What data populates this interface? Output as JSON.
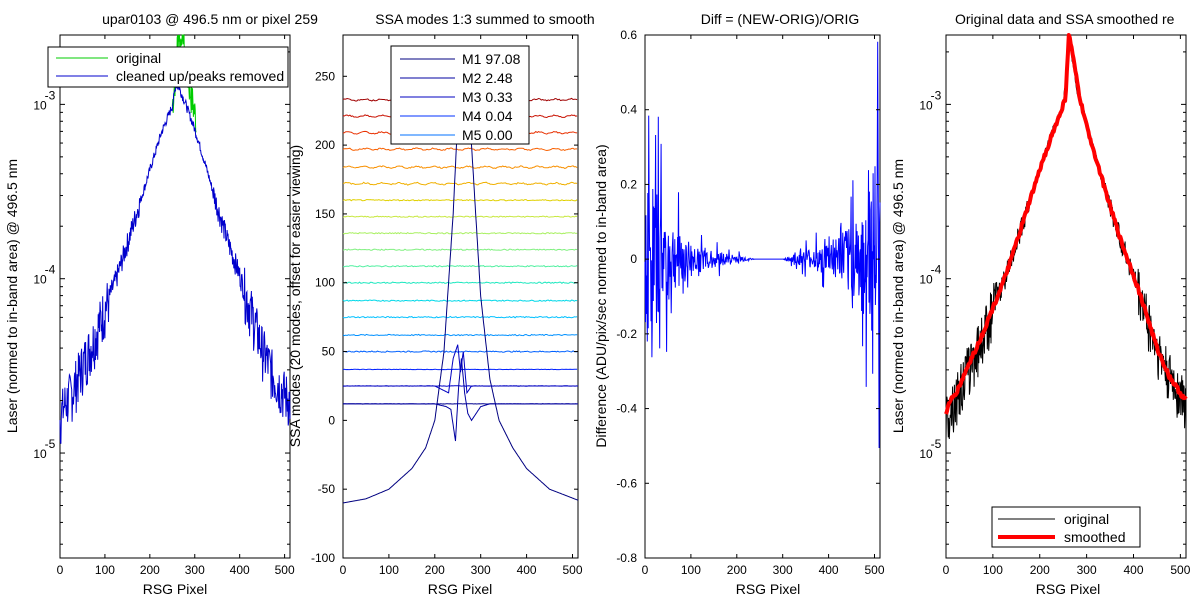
{
  "chart_data": [
    {
      "type": "line",
      "title": "upar0103 @ 496.5 nm or pixel 259",
      "xlabel": "RSG Pixel",
      "ylabel": "Laser (normed to in-band area) @ 496.5 nm",
      "xlim": [
        0,
        512
      ],
      "ylim": [
        2.5e-06,
        0.0025
      ],
      "yscale": "log",
      "xticks": [
        "0",
        "100",
        "200",
        "300",
        "400",
        "500"
      ],
      "yticks": [
        {
          "base": "10",
          "exp": "-3"
        },
        {
          "base": "10",
          "exp": "-4"
        },
        {
          "base": "10",
          "exp": "-5"
        }
      ],
      "legend": {
        "position": "top",
        "entries": [
          "original",
          "cleaned up/peaks removed"
        ]
      },
      "series": [
        {
          "name": "original",
          "color": "#00cc00",
          "x": [
            250,
            258,
            264,
            268,
            272,
            276,
            282,
            290,
            298,
            303
          ],
          "y": [
            0.00098,
            0.0016,
            0.0028,
            0.0022,
            0.0031,
            0.0024,
            0.0016,
            0.0012,
            0.00095,
            0.00082
          ]
        },
        {
          "name": "cleaned up/peaks removed",
          "color": "#0000cc",
          "x": [
            0,
            10,
            25,
            50,
            75,
            100,
            125,
            150,
            175,
            200,
            225,
            250,
            258,
            265,
            280,
            300,
            325,
            350,
            375,
            400,
            425,
            450,
            475,
            500,
            512
          ],
          "y": [
            1.6e-05,
            1.9e-05,
            2.2e-05,
            3.2e-05,
            4.5e-05,
            6.8e-05,
            0.0001,
            0.00016,
            0.00026,
            0.00042,
            0.00068,
            0.00098,
            0.0013,
            0.00125,
            0.001,
            0.00072,
            0.00044,
            0.00026,
            0.00016,
            0.000105,
            6.6e-05,
            4e-05,
            2.8e-05,
            2.2e-05,
            2e-05
          ]
        }
      ]
    },
    {
      "type": "line",
      "title": "SSA modes 1:3 summed to smooth",
      "xlabel": "RSG Pixel",
      "ylabel": "SSA modes (20 modes, offset for easier viewing)",
      "xlim": [
        0,
        512
      ],
      "ylim": [
        -100,
        280
      ],
      "xticks": [
        "0",
        "100",
        "200",
        "300",
        "400",
        "500"
      ],
      "yticks": [
        "-100",
        "-50",
        "0",
        "50",
        "100",
        "150",
        "200",
        "250"
      ],
      "legend": {
        "position": "top",
        "entries": [
          "M1 97.08",
          "M2 2.48",
          "M3 0.33",
          "M4 0.04",
          "M5 0.00"
        ]
      },
      "offsets": [
        12,
        25,
        37,
        50,
        62,
        75,
        87,
        100,
        112,
        124,
        136,
        148,
        160,
        172,
        184,
        197,
        209,
        221,
        233
      ],
      "colors": [
        "#000090",
        "#0000c8",
        "#0020ff",
        "#0060ff",
        "#0090ff",
        "#00c0ff",
        "#00d8e8",
        "#20e8c0",
        "#50f0a0",
        "#80f080",
        "#a8f060",
        "#c8e840",
        "#e0d000",
        "#f0b000",
        "#f89000",
        "#f86000",
        "#e83000",
        "#c81000",
        "#a00000"
      ],
      "mode1": {
        "x": [
          0,
          50,
          100,
          150,
          180,
          200,
          220,
          240,
          250,
          256,
          260,
          266,
          280,
          300,
          320,
          340,
          370,
          400,
          450,
          512
        ],
        "y": [
          -60,
          -57,
          -50,
          -35,
          -20,
          0,
          50,
          150,
          220,
          245,
          250,
          240,
          200,
          90,
          30,
          0,
          -20,
          -35,
          -50,
          -58
        ]
      },
      "mode2": {
        "x": [
          0,
          200,
          225,
          235,
          245,
          252,
          258,
          265,
          272,
          280,
          290,
          300,
          320,
          512
        ],
        "y": [
          12,
          12,
          10,
          8,
          -15,
          25,
          45,
          20,
          5,
          0,
          5,
          10,
          12,
          12
        ]
      },
      "mode3": {
        "x": [
          0,
          200,
          230,
          240,
          250,
          256,
          262,
          270,
          280,
          300,
          512
        ],
        "y": [
          25,
          25,
          20,
          45,
          55,
          35,
          50,
          20,
          25,
          25,
          25
        ]
      }
    },
    {
      "type": "line",
      "title": "Diff = (NEW-ORIG)/ORIG",
      "xlabel": "RSG Pixel",
      "ylabel": "Difference (ADU/pix/sec normed to in-band area)",
      "xlim": [
        0,
        512
      ],
      "ylim": [
        -0.8,
        0.6
      ],
      "xticks": [
        "0",
        "100",
        "200",
        "300",
        "400",
        "500"
      ],
      "yticks": [
        "-0.8",
        "-0.6",
        "-0.4",
        "-0.2",
        "0",
        "0.2",
        "0.4",
        "0.6"
      ],
      "series": [
        {
          "color": "#0000ff",
          "envelope_x": [
            0,
            20,
            50,
            100,
            150,
            200,
            240,
            300,
            320,
            360,
            400,
            440,
            480,
            500,
            512
          ],
          "envelope_y": [
            0.45,
            0.35,
            0.2,
            0.08,
            0.04,
            0.02,
            0,
            0,
            0.02,
            0.05,
            0.08,
            0.15,
            0.3,
            0.45,
            0.5
          ],
          "flat_range": [
            240,
            300
          ]
        }
      ]
    },
    {
      "type": "line",
      "title": "Original data and SSA smoothed re",
      "xlabel": "RSG Pixel",
      "ylabel": "Laser (normed to in-band area) @ 496.5 nm",
      "xlim": [
        0,
        512
      ],
      "ylim": [
        2.5e-06,
        0.0025
      ],
      "yscale": "log",
      "xticks": [
        "0",
        "100",
        "200",
        "300",
        "400",
        "500"
      ],
      "yticks": [
        {
          "base": "10",
          "exp": "-3"
        },
        {
          "base": "10",
          "exp": "-4"
        },
        {
          "base": "10",
          "exp": "-5"
        }
      ],
      "legend": {
        "position": "bottom-right",
        "entries": [
          "original",
          "smoothed"
        ]
      },
      "series": [
        {
          "name": "original",
          "color": "#000000",
          "x": [
            0,
            10,
            25,
            50,
            75,
            100,
            125,
            150,
            175,
            200,
            225,
            250,
            258,
            265,
            280,
            300,
            325,
            350,
            375,
            400,
            425,
            450,
            475,
            500,
            512
          ],
          "y": [
            1.6e-05,
            1.9e-05,
            2.2e-05,
            3.2e-05,
            4.5e-05,
            6.8e-05,
            0.0001,
            0.00016,
            0.00026,
            0.00042,
            0.00068,
            0.00098,
            0.0016,
            0.0022,
            0.0012,
            0.00078,
            0.00044,
            0.00026,
            0.00016,
            0.000105,
            6.6e-05,
            4e-05,
            2.8e-05,
            2.2e-05,
            2e-05
          ]
        },
        {
          "name": "smoothed",
          "color": "#ff0000",
          "x": [
            0,
            10,
            25,
            50,
            75,
            100,
            125,
            150,
            175,
            200,
            225,
            245,
            255,
            262,
            268,
            275,
            285,
            300,
            325,
            350,
            375,
            400,
            425,
            450,
            475,
            500,
            512
          ],
          "y": [
            1.7e-05,
            2e-05,
            2.3e-05,
            3.3e-05,
            4.6e-05,
            6.8e-05,
            0.0001,
            0.00016,
            0.00026,
            0.00042,
            0.00066,
            0.0009,
            0.0011,
            0.0025,
            0.0021,
            0.0016,
            0.0011,
            0.00075,
            0.00044,
            0.00026,
            0.00016,
            0.000105,
            6.6e-05,
            4e-05,
            2.8e-05,
            2.2e-05,
            2e-05
          ]
        }
      ]
    }
  ]
}
